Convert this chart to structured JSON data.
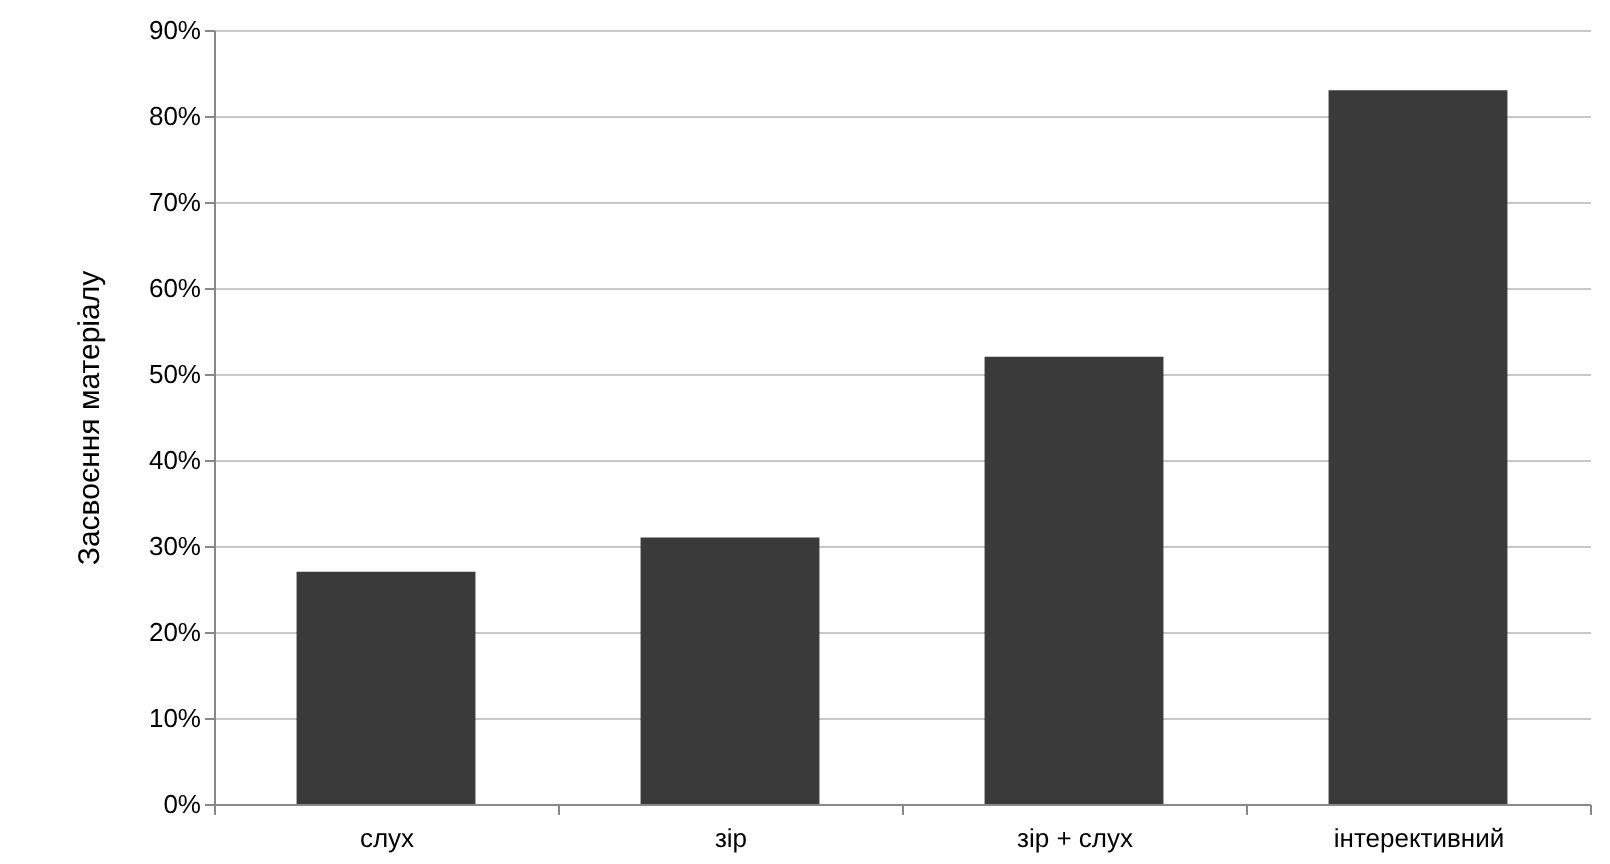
{
  "chart_data": {
    "type": "bar",
    "ylabel": "Засвоєння матеріалу",
    "categories": [
      "слух",
      "зір",
      "зір + слух",
      "інтерективний"
    ],
    "values": [
      27,
      31,
      52,
      83
    ],
    "color": "#3a3a3a",
    "ylim": [
      0,
      90
    ],
    "yticks": [
      {
        "value": 0,
        "label": "0%"
      },
      {
        "value": 10,
        "label": "10%"
      },
      {
        "value": 20,
        "label": "20%"
      },
      {
        "value": 30,
        "label": "30%"
      },
      {
        "value": 40,
        "label": "40%"
      },
      {
        "value": 50,
        "label": "50%"
      },
      {
        "value": 60,
        "label": "60%"
      },
      {
        "value": 70,
        "label": "70%"
      },
      {
        "value": 80,
        "label": "80%"
      },
      {
        "value": 90,
        "label": "90%"
      }
    ],
    "grid": "y"
  }
}
